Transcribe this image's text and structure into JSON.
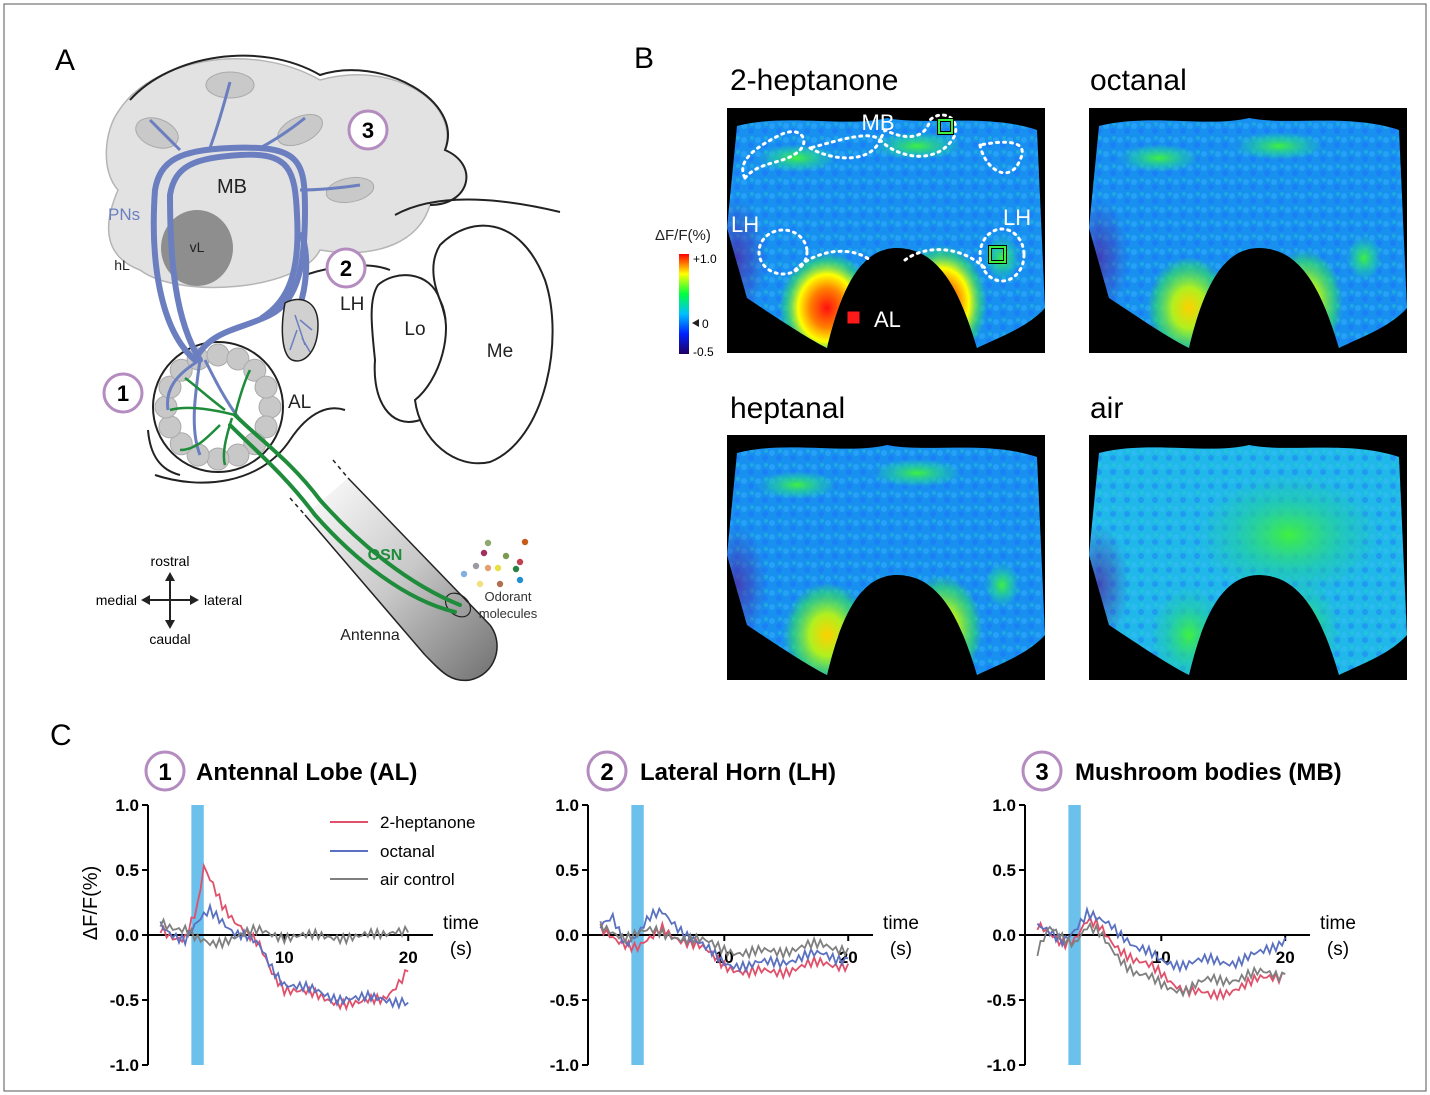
{
  "panels": {
    "a": "A",
    "b": "B",
    "c": "C"
  },
  "schematic": {
    "regions": {
      "mb": "MB",
      "vl": "vL",
      "hl": "hL",
      "lh": "LH",
      "al": "AL",
      "lo": "Lo",
      "me": "Me"
    },
    "pns_label": "PNs",
    "osn_label": "OSN",
    "antenna_label": "Antenna",
    "odorant_label": [
      "Odorant",
      "molecules"
    ],
    "badges": [
      "1",
      "2",
      "3"
    ],
    "compass": {
      "rostral": "rostral",
      "caudal": "caudal",
      "medial": "medial",
      "lateral": "lateral"
    },
    "pn_color": "#6b7fc0",
    "osn_color": "#1e8c3a",
    "badge_color": "#b48cc0",
    "odorant_colors": [
      "#8fa870",
      "#c85a1a",
      "#a03060",
      "#7a9a50",
      "#c04050",
      "#9a9aa0",
      "#e0a070",
      "#e8e040",
      "#2a8040",
      "#80b0e0",
      "#f0e080",
      "#b07050",
      "#2090d0"
    ]
  },
  "imaging": {
    "panels": [
      "2-heptanone",
      "octanal",
      "heptanal",
      "air"
    ],
    "roi_labels": {
      "mb": "MB",
      "lh_left": "LH",
      "lh_right": "LH",
      "al": "AL"
    },
    "colorbar": {
      "title": "ΔF/F(%)",
      "max": "+1.0",
      "zero": "0",
      "min": "-0.5"
    },
    "intensity": [
      1.0,
      0.4,
      0.55,
      0.0
    ]
  },
  "traces": {
    "ylabel": "ΔF/F(%)",
    "xlabel": [
      "time",
      "(s)"
    ],
    "legend": [
      "2-heptanone",
      "octanal",
      "air control"
    ],
    "series_colors": {
      "2-heptanone": "#e0506a",
      "octanal": "#5a70c0",
      "air control": "#7f7f7f"
    },
    "stimulus_color": "#6cc0ec",
    "titles": [
      {
        "num": "1",
        "text": "Antennal Lobe (AL)"
      },
      {
        "num": "2",
        "text": "Lateral Horn (LH)"
      },
      {
        "num": "3",
        "text": "Mushroom bodies (MB)"
      }
    ]
  },
  "chart_data": [
    {
      "type": "line",
      "title": "Antennal Lobe (AL)",
      "xlabel": "time (s)",
      "ylabel": "ΔF/F(%)",
      "xlim": [
        -1,
        22
      ],
      "ylim": [
        -1.0,
        1.0
      ],
      "xticks": [
        10,
        20
      ],
      "yticks": [
        1.0,
        0.5,
        0.0,
        -0.5,
        -1.0
      ],
      "stimulus": [
        2.5,
        3.5
      ],
      "series": [
        {
          "name": "2-heptanone",
          "x": [
            0,
            1,
            2,
            3,
            3.5,
            4,
            5,
            6,
            7,
            8,
            9,
            10,
            12,
            14,
            16,
            18,
            19,
            20
          ],
          "y": [
            0.05,
            0.0,
            -0.02,
            0.2,
            0.5,
            0.42,
            0.25,
            0.12,
            0.0,
            -0.1,
            -0.28,
            -0.4,
            -0.46,
            -0.5,
            -0.54,
            -0.48,
            -0.38,
            -0.28
          ]
        },
        {
          "name": "octanal",
          "x": [
            0,
            1,
            2,
            3,
            4,
            5,
            6,
            7,
            8,
            9,
            10,
            12,
            14,
            16,
            18,
            20
          ],
          "y": [
            0.08,
            0.02,
            -0.03,
            0.08,
            0.18,
            0.12,
            0.03,
            -0.02,
            -0.1,
            -0.25,
            -0.36,
            -0.43,
            -0.47,
            -0.5,
            -0.48,
            -0.52
          ]
        },
        {
          "name": "air control",
          "x": [
            0,
            2,
            3,
            4,
            6,
            8,
            10,
            12,
            14,
            16,
            18,
            19,
            20
          ],
          "y": [
            0.1,
            0.05,
            -0.05,
            -0.08,
            0.0,
            0.02,
            0.0,
            -0.02,
            0.0,
            -0.03,
            0.02,
            0.05,
            0.02
          ]
        }
      ]
    },
    {
      "type": "line",
      "title": "Lateral Horn (LH)",
      "xlabel": "time (s)",
      "ylabel": "",
      "xlim": [
        -1,
        22
      ],
      "ylim": [
        -1.0,
        1.0
      ],
      "xticks": [
        10,
        20
      ],
      "yticks": [
        1.0,
        0.5,
        0.0,
        -0.5,
        -1.0
      ],
      "stimulus": [
        2.5,
        3.5
      ],
      "series": [
        {
          "name": "2-heptanone",
          "x": [
            0,
            2,
            3,
            4,
            5,
            6,
            7,
            8,
            10,
            12,
            14,
            16,
            18,
            20
          ],
          "y": [
            0.03,
            -0.05,
            -0.1,
            -0.05,
            0.05,
            0.0,
            -0.05,
            -0.1,
            -0.22,
            -0.3,
            -0.28,
            -0.25,
            -0.22,
            -0.22
          ]
        },
        {
          "name": "octanal",
          "x": [
            0,
            1,
            2,
            3,
            4,
            5,
            6,
            7,
            8,
            10,
            12,
            14,
            16,
            18,
            20
          ],
          "y": [
            0.05,
            0.15,
            -0.05,
            0.0,
            0.12,
            0.18,
            0.1,
            0.0,
            -0.08,
            -0.2,
            -0.25,
            -0.2,
            -0.18,
            -0.15,
            -0.18
          ]
        },
        {
          "name": "air control",
          "x": [
            0,
            2,
            4,
            6,
            8,
            10,
            12,
            14,
            16,
            18,
            20
          ],
          "y": [
            0.05,
            0.0,
            0.02,
            0.0,
            -0.05,
            -0.1,
            -0.15,
            -0.12,
            -0.1,
            -0.08,
            -0.1
          ]
        }
      ]
    },
    {
      "type": "line",
      "title": "Mushroom bodies (MB)",
      "xlabel": "time (s)",
      "ylabel": "",
      "xlim": [
        -1,
        22
      ],
      "ylim": [
        -1.0,
        1.0
      ],
      "xticks": [
        10,
        20
      ],
      "yticks": [
        1.0,
        0.5,
        0.0,
        -0.5,
        -1.0
      ],
      "stimulus": [
        2.5,
        3.5
      ],
      "series": [
        {
          "name": "2-heptanone",
          "x": [
            0,
            1,
            2,
            3,
            4,
            5,
            6,
            7,
            8,
            10,
            12,
            14,
            16,
            18,
            20
          ],
          "y": [
            0.05,
            0.0,
            -0.05,
            -0.02,
            0.1,
            0.05,
            -0.05,
            -0.12,
            -0.2,
            -0.3,
            -0.42,
            -0.48,
            -0.4,
            -0.35,
            -0.3
          ]
        },
        {
          "name": "octanal",
          "x": [
            0,
            2,
            3,
            4,
            5,
            6,
            7,
            8,
            10,
            12,
            14,
            16,
            18,
            19,
            20
          ],
          "y": [
            0.05,
            -0.03,
            0.05,
            0.15,
            0.1,
            0.08,
            0.0,
            -0.1,
            -0.2,
            -0.22,
            -0.2,
            -0.2,
            -0.15,
            -0.1,
            -0.02
          ]
        },
        {
          "name": "air control",
          "x": [
            0,
            1,
            2,
            3,
            4,
            5,
            6,
            7,
            8,
            10,
            12,
            14,
            16,
            18,
            20
          ],
          "y": [
            -0.15,
            0.05,
            0.0,
            -0.05,
            0.05,
            0.0,
            -0.1,
            -0.2,
            -0.3,
            -0.38,
            -0.42,
            -0.35,
            -0.33,
            -0.3,
            -0.3
          ]
        }
      ]
    }
  ]
}
